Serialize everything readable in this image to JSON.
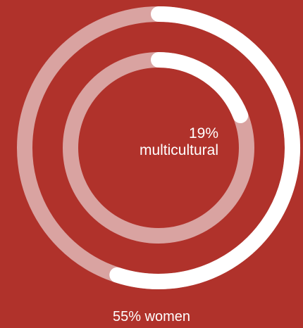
{
  "chart_data": {
    "type": "pie",
    "subtype": "radial-progress",
    "title": "",
    "series": [
      {
        "label": "55% women",
        "value": 55,
        "unit": "%",
        "ring": "outer"
      },
      {
        "label": "19% multicultural",
        "value": 19,
        "unit": "%",
        "ring": "inner"
      }
    ],
    "labels": {
      "inner_value": "19%",
      "inner_text": "multicultural",
      "outer": "55% women"
    }
  },
  "colors": {
    "background": "#b0322b",
    "track": "#d9a3a1",
    "progress": "#ffffff",
    "text": "#ffffff"
  }
}
